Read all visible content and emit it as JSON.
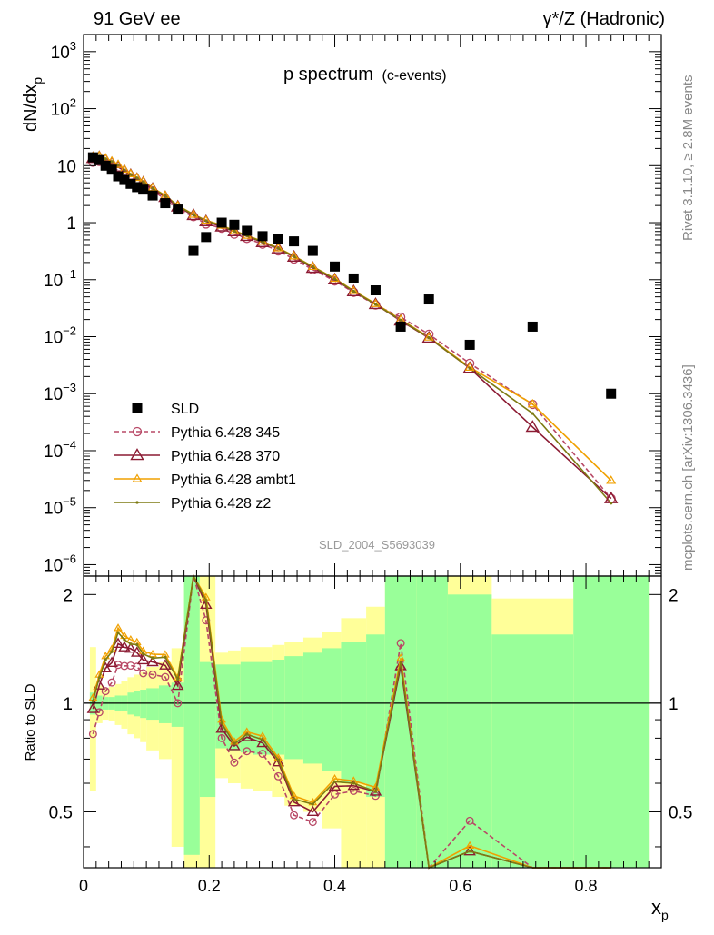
{
  "header": {
    "left": "91 GeV ee",
    "right": "γ*/Z (Hadronic)"
  },
  "side_labels": {
    "rivet": "Rivet 3.1.10, ≥ 2.8M events",
    "mcplots": "mcplots.cern.ch [arXiv:1306.3436]"
  },
  "chart_data": {
    "type": "scatter",
    "title": "p spectrum",
    "subtitle": "(c-events)",
    "analysis_id": "SLD_2004_S5693039",
    "xlabel": "x",
    "xlabel_sub": "p",
    "ylabel": "dN/dx",
    "ylabel_sub": "p",
    "ratio_ylabel": "Ratio to SLD",
    "xlim": [
      0,
      0.92
    ],
    "ylim_log10": [
      -6.2,
      3.3
    ],
    "ratio_ylim": [
      0.35,
      2.25
    ],
    "y_scale": "log",
    "x_ticks": [
      "0",
      "0.2",
      "0.4",
      "0.6",
      "0.8"
    ],
    "x_tick_values": [
      0,
      0.2,
      0.4,
      0.6,
      0.8
    ],
    "y_ticks": [
      {
        "v": 1000,
        "base": "10",
        "exp": "3"
      },
      {
        "v": 100,
        "base": "10",
        "exp": "2"
      },
      {
        "v": 10,
        "base": "10",
        "exp": ""
      },
      {
        "v": 1,
        "base": "1",
        "exp": ""
      },
      {
        "v": 0.1,
        "base": "10",
        "exp": "−1"
      },
      {
        "v": 0.01,
        "base": "10",
        "exp": "−2"
      },
      {
        "v": 0.001,
        "base": "10",
        "exp": "−3"
      },
      {
        "v": 0.0001,
        "base": "10",
        "exp": "−4"
      },
      {
        "v": 1e-05,
        "base": "10",
        "exp": "−5"
      },
      {
        "v": 1e-06,
        "base": "10",
        "exp": "−6"
      }
    ],
    "ratio_ticks": [
      "0.5",
      "1",
      "2"
    ],
    "ratio_tick_values": [
      0.5,
      1,
      2
    ],
    "legend_position": "lower-left",
    "data": {
      "name": "SLD",
      "x": [
        0.015,
        0.025,
        0.035,
        0.045,
        0.055,
        0.065,
        0.075,
        0.085,
        0.095,
        0.11,
        0.13,
        0.15,
        0.175,
        0.195,
        0.22,
        0.24,
        0.26,
        0.285,
        0.31,
        0.335,
        0.365,
        0.4,
        0.43,
        0.465,
        0.505,
        0.55,
        0.615,
        0.715,
        0.84
      ],
      "y": [
        14,
        12.5,
        10,
        8.5,
        6.5,
        5.6,
        4.8,
        4.2,
        3.8,
        3.0,
        2.2,
        1.7,
        0.32,
        0.56,
        1.0,
        0.92,
        0.72,
        0.58,
        0.51,
        0.47,
        0.32,
        0.17,
        0.105,
        0.065,
        0.015,
        0.045,
        0.0072,
        0.015,
        0.001
      ]
    },
    "series": [
      {
        "name": "Pythia 6.428 345",
        "color": "#b84866",
        "style": "dashed",
        "marker": "circle",
        "x": [
          0.015,
          0.025,
          0.035,
          0.045,
          0.055,
          0.065,
          0.075,
          0.085,
          0.095,
          0.11,
          0.13,
          0.15,
          0.175,
          0.195,
          0.22,
          0.24,
          0.26,
          0.285,
          0.31,
          0.335,
          0.365,
          0.4,
          0.43,
          0.465,
          0.505,
          0.55,
          0.615,
          0.715,
          0.84
        ],
        "y": [
          11.5,
          11.8,
          10.8,
          9.7,
          8.3,
          7.1,
          6.1,
          5.3,
          4.6,
          3.6,
          2.6,
          1.7,
          1.28,
          0.95,
          0.8,
          0.63,
          0.53,
          0.42,
          0.32,
          0.23,
          0.15,
          0.095,
          0.06,
          0.036,
          0.022,
          0.011,
          0.0034,
          0.00065,
          1.45e-05
        ]
      },
      {
        "name": "Pythia 6.428 370",
        "color": "#8b1a32",
        "style": "solid",
        "marker": "triangle",
        "x": [
          0.015,
          0.025,
          0.035,
          0.045,
          0.055,
          0.065,
          0.075,
          0.085,
          0.095,
          0.11,
          0.13,
          0.15,
          0.175,
          0.195,
          0.22,
          0.24,
          0.26,
          0.285,
          0.31,
          0.335,
          0.365,
          0.4,
          0.43,
          0.465,
          0.505,
          0.55,
          0.615,
          0.715,
          0.84
        ],
        "y": [
          13.5,
          14,
          12.5,
          11,
          9.5,
          8.0,
          6.8,
          5.8,
          5.0,
          3.9,
          2.8,
          1.9,
          1.35,
          1.05,
          0.85,
          0.7,
          0.58,
          0.45,
          0.35,
          0.25,
          0.16,
          0.1,
          0.062,
          0.037,
          0.019,
          0.0095,
          0.0028,
          0.00026,
          1.45e-05
        ]
      },
      {
        "name": "Pythia 6.428 ambt1",
        "color": "#f0a000",
        "style": "solid",
        "marker": "open-triangle-small",
        "x": [
          0.015,
          0.025,
          0.035,
          0.045,
          0.055,
          0.065,
          0.075,
          0.085,
          0.095,
          0.11,
          0.13,
          0.15,
          0.175,
          0.195,
          0.22,
          0.24,
          0.26,
          0.285,
          0.31,
          0.335,
          0.365,
          0.4,
          0.43,
          0.465,
          0.505,
          0.55,
          0.615,
          0.715,
          0.84
        ],
        "y": [
          14.5,
          15,
          13.5,
          12,
          10.5,
          8.6,
          7.2,
          6.2,
          5.3,
          4.1,
          3.0,
          2.0,
          1.4,
          1.1,
          0.9,
          0.72,
          0.6,
          0.47,
          0.36,
          0.26,
          0.17,
          0.105,
          0.064,
          0.038,
          0.02,
          0.0098,
          0.0029,
          0.00066,
          3e-05
        ]
      },
      {
        "name": "Pythia 6.428 z2",
        "color": "#7d7a12",
        "style": "solid",
        "marker": "dot",
        "x": [
          0.015,
          0.025,
          0.035,
          0.045,
          0.055,
          0.065,
          0.075,
          0.085,
          0.095,
          0.11,
          0.13,
          0.15,
          0.175,
          0.195,
          0.22,
          0.24,
          0.26,
          0.285,
          0.31,
          0.335,
          0.365,
          0.4,
          0.43,
          0.465,
          0.505,
          0.55,
          0.615,
          0.715,
          0.84
        ],
        "y": [
          14.2,
          14.7,
          13.2,
          11.8,
          10.2,
          8.4,
          7.0,
          6.1,
          5.2,
          4.0,
          2.95,
          1.98,
          1.38,
          1.08,
          0.88,
          0.71,
          0.59,
          0.46,
          0.355,
          0.255,
          0.168,
          0.103,
          0.063,
          0.037,
          0.0195,
          0.0096,
          0.0028,
          0.00045,
          1.2e-05
        ]
      }
    ],
    "uncertainty_bands": [
      {
        "x0": 0.01,
        "x1": 0.02,
        "inner": [
          0.93,
          1.07
        ],
        "outer": [
          0.57,
          1.43
        ]
      },
      {
        "x0": 0.02,
        "x1": 0.03,
        "inner": [
          0.95,
          1.05
        ],
        "outer": [
          0.88,
          1.12
        ]
      },
      {
        "x0": 0.03,
        "x1": 0.04,
        "inner": [
          0.96,
          1.04
        ],
        "outer": [
          0.9,
          1.1
        ]
      },
      {
        "x0": 0.04,
        "x1": 0.05,
        "inner": [
          0.96,
          1.04
        ],
        "outer": [
          0.89,
          1.11
        ]
      },
      {
        "x0": 0.05,
        "x1": 0.06,
        "inner": [
          0.95,
          1.05
        ],
        "outer": [
          0.87,
          1.13
        ]
      },
      {
        "x0": 0.06,
        "x1": 0.07,
        "inner": [
          0.95,
          1.05
        ],
        "outer": [
          0.85,
          1.15
        ]
      },
      {
        "x0": 0.07,
        "x1": 0.08,
        "inner": [
          0.93,
          1.07
        ],
        "outer": [
          0.82,
          1.18
        ]
      },
      {
        "x0": 0.08,
        "x1": 0.09,
        "inner": [
          0.92,
          1.08
        ],
        "outer": [
          0.8,
          1.2
        ]
      },
      {
        "x0": 0.09,
        "x1": 0.1,
        "inner": [
          0.91,
          1.09
        ],
        "outer": [
          0.78,
          1.22
        ]
      },
      {
        "x0": 0.1,
        "x1": 0.12,
        "inner": [
          0.9,
          1.1
        ],
        "outer": [
          0.74,
          1.26
        ]
      },
      {
        "x0": 0.12,
        "x1": 0.14,
        "inner": [
          0.88,
          1.12
        ],
        "outer": [
          0.7,
          1.3
        ]
      },
      {
        "x0": 0.14,
        "x1": 0.16,
        "inner": [
          0.86,
          1.14
        ],
        "outer": [
          0.4,
          1.42
        ]
      },
      {
        "x0": 0.16,
        "x1": 0.185,
        "inner": [
          0.38,
          2.25
        ],
        "outer": [
          0.35,
          2.25
        ]
      },
      {
        "x0": 0.185,
        "x1": 0.21,
        "inner": [
          0.55,
          1.3
        ],
        "outer": [
          0.35,
          2.25
        ]
      },
      {
        "x0": 0.21,
        "x1": 0.23,
        "inner": [
          0.75,
          1.28
        ],
        "outer": [
          0.62,
          1.38
        ]
      },
      {
        "x0": 0.23,
        "x1": 0.25,
        "inner": [
          0.74,
          1.28
        ],
        "outer": [
          0.6,
          1.4
        ]
      },
      {
        "x0": 0.25,
        "x1": 0.27,
        "inner": [
          0.73,
          1.3
        ],
        "outer": [
          0.58,
          1.43
        ]
      },
      {
        "x0": 0.27,
        "x1": 0.3,
        "inner": [
          0.72,
          1.3
        ],
        "outer": [
          0.57,
          1.43
        ]
      },
      {
        "x0": 0.3,
        "x1": 0.32,
        "inner": [
          0.72,
          1.32
        ],
        "outer": [
          0.55,
          1.45
        ]
      },
      {
        "x0": 0.32,
        "x1": 0.35,
        "inner": [
          0.7,
          1.35
        ],
        "outer": [
          0.52,
          1.48
        ]
      },
      {
        "x0": 0.35,
        "x1": 0.38,
        "inner": [
          0.68,
          1.38
        ],
        "outer": [
          0.5,
          1.52
        ]
      },
      {
        "x0": 0.38,
        "x1": 0.41,
        "inner": [
          0.65,
          1.42
        ],
        "outer": [
          0.45,
          1.58
        ]
      },
      {
        "x0": 0.41,
        "x1": 0.45,
        "inner": [
          0.6,
          1.48
        ],
        "outer": [
          0.35,
          1.72
        ]
      },
      {
        "x0": 0.45,
        "x1": 0.48,
        "inner": [
          0.55,
          1.55
        ],
        "outer": [
          0.35,
          1.85
        ]
      },
      {
        "x0": 0.48,
        "x1": 0.53,
        "inner": [
          0.35,
          2.25
        ],
        "outer": [
          0.35,
          2.25
        ]
      },
      {
        "x0": 0.53,
        "x1": 0.58,
        "inner": [
          0.35,
          2.25
        ],
        "outer": [
          0.35,
          2.25
        ]
      },
      {
        "x0": 0.58,
        "x1": 0.65,
        "inner": [
          0.35,
          2.0
        ],
        "outer": [
          0.35,
          2.25
        ]
      },
      {
        "x0": 0.65,
        "x1": 0.78,
        "inner": [
          0.35,
          1.55
        ],
        "outer": [
          0.35,
          1.95
        ]
      },
      {
        "x0": 0.78,
        "x1": 0.9,
        "inner": [
          0.35,
          2.25
        ],
        "outer": [
          0.35,
          2.25
        ]
      }
    ]
  }
}
